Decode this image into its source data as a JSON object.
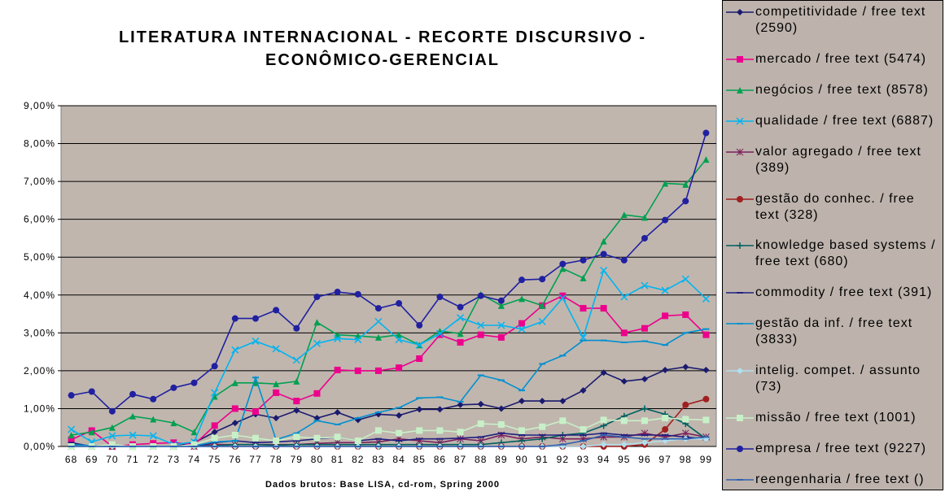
{
  "chart_data": {
    "type": "line",
    "title": [
      "LITERATURA INTERNACIONAL - RECORTE DISCURSIVO -",
      "ECONÔMICO-GERENCIAL"
    ],
    "x_label": "Dados brutos: Base LISA, cd-rom, Spring 2000",
    "categories": [
      "68",
      "69",
      "70",
      "71",
      "72",
      "73",
      "74",
      "75",
      "76",
      "77",
      "78",
      "79",
      "80",
      "81",
      "82",
      "83",
      "84",
      "85",
      "86",
      "87",
      "88",
      "89",
      "90",
      "91",
      "92",
      "93",
      "94",
      "95",
      "96",
      "97",
      "98",
      "99"
    ],
    "ylim": [
      0,
      9
    ],
    "yticks": [
      {
        "value": 0,
        "label": "0,00%"
      },
      {
        "value": 1,
        "label": "1,00%"
      },
      {
        "value": 2,
        "label": "2,00%"
      },
      {
        "value": 3,
        "label": "3,00%"
      },
      {
        "value": 4,
        "label": "4,00%"
      },
      {
        "value": 5,
        "label": "5,00%"
      },
      {
        "value": 6,
        "label": "6,00%"
      },
      {
        "value": 7,
        "label": "7,00%"
      },
      {
        "value": 8,
        "label": "8,00%"
      },
      {
        "value": 9,
        "label": "9,00%"
      }
    ],
    "grid": true,
    "series": [
      {
        "name": "competitividade / free text (2590)",
        "color": "#1a1a6e",
        "marker": "diamond",
        "values": [
          0.05,
          0,
          0,
          0,
          0,
          0,
          0.1,
          0.38,
          0.62,
          0.85,
          0.75,
          0.95,
          0.75,
          0.9,
          0.7,
          0.85,
          0.82,
          0.98,
          0.98,
          1.1,
          1.12,
          1.0,
          1.2,
          1.2,
          1.2,
          1.48,
          1.95,
          1.72,
          1.78,
          2.02,
          2.1,
          2.02
        ]
      },
      {
        "name": "mercado / free text (5474)",
        "color": "#ec008c",
        "marker": "square",
        "values": [
          0.18,
          0.42,
          0,
          0.05,
          0.08,
          0.1,
          0.05,
          0.55,
          1.0,
          0.92,
          1.42,
          1.2,
          1.4,
          2.02,
          2.0,
          2.0,
          2.08,
          2.32,
          2.95,
          2.75,
          2.95,
          2.88,
          3.25,
          3.72,
          3.98,
          3.65,
          3.65,
          3.0,
          3.12,
          3.45,
          3.48,
          2.95
        ]
      },
      {
        "name": "negócios / free text (8578)",
        "color": "#00a050",
        "marker": "triangle",
        "values": [
          0.3,
          0.38,
          0.5,
          0.8,
          0.72,
          0.62,
          0.38,
          1.32,
          1.68,
          1.68,
          1.65,
          1.72,
          3.28,
          2.95,
          2.92,
          2.88,
          2.95,
          2.68,
          3.05,
          2.98,
          4.02,
          3.72,
          3.9,
          3.72,
          4.7,
          4.45,
          5.42,
          6.12,
          6.05,
          6.95,
          6.92,
          7.58
        ]
      },
      {
        "name": "qualidade / free text (6887)",
        "color": "#00b4f0",
        "marker": "x",
        "values": [
          0.45,
          0.12,
          0.28,
          0.3,
          0.28,
          0.05,
          0.12,
          1.42,
          2.55,
          2.78,
          2.58,
          2.28,
          2.72,
          2.85,
          2.82,
          3.3,
          2.82,
          2.68,
          2.98,
          3.4,
          3.2,
          3.2,
          3.1,
          3.3,
          3.92,
          2.88,
          4.65,
          3.95,
          4.25,
          4.12,
          4.42,
          3.9
        ]
      },
      {
        "name": "valor agregado / free text (389)",
        "color": "#7a1f5c",
        "marker": "star",
        "values": [
          0,
          0,
          0,
          0,
          0,
          0,
          0,
          0.05,
          0.05,
          0.05,
          0.05,
          0.05,
          0.08,
          0.1,
          0.1,
          0.12,
          0.2,
          0.15,
          0.1,
          0.2,
          0.15,
          0.3,
          0.2,
          0.25,
          0.2,
          0.2,
          0.25,
          0.25,
          0.35,
          0.25,
          0.35,
          0.25
        ]
      },
      {
        "name": "gestão do conhec. / free text (328)",
        "color": "#a02020",
        "marker": "circle",
        "values": [
          0,
          0,
          0,
          0,
          0,
          0,
          0,
          0,
          0,
          0,
          0,
          0,
          0,
          0,
          0,
          0,
          0,
          0,
          0,
          0,
          0,
          0,
          0,
          0,
          0,
          0,
          0,
          0,
          0.05,
          0.45,
          1.1,
          1.25
        ]
      },
      {
        "name": "knowledge based systems / free text (680)",
        "color": "#006060",
        "marker": "plus",
        "values": [
          0,
          0,
          0,
          0,
          0,
          0,
          0,
          0.02,
          0.05,
          0.05,
          0.03,
          0.05,
          0.05,
          0.05,
          0.05,
          0.05,
          0.05,
          0.05,
          0.05,
          0.05,
          0.05,
          0.1,
          0.15,
          0.2,
          0.3,
          0.35,
          0.55,
          0.8,
          1.0,
          0.85,
          0.6,
          0.2
        ]
      },
      {
        "name": "commodity / free text (391)",
        "color": "#202080",
        "marker": "dash",
        "values": [
          0.1,
          0,
          0,
          0,
          0,
          0,
          0,
          0.1,
          0.15,
          0.1,
          0.12,
          0.15,
          0.2,
          0.25,
          0.15,
          0.2,
          0.15,
          0.2,
          0.2,
          0.22,
          0.25,
          0.35,
          0.3,
          0.3,
          0.3,
          0.3,
          0.35,
          0.3,
          0.3,
          0.3,
          0.25,
          0.2
        ]
      },
      {
        "name": "gestão da inf. / free text (3833)",
        "color": "#0090d0",
        "marker": "dash",
        "values": [
          0.05,
          0.02,
          0,
          0,
          0,
          0,
          0.02,
          0.12,
          0.15,
          1.82,
          0.18,
          0.35,
          0.68,
          0.58,
          0.75,
          0.9,
          1.02,
          1.28,
          1.3,
          1.18,
          1.88,
          1.75,
          1.48,
          2.18,
          2.4,
          2.8,
          2.8,
          2.75,
          2.78,
          2.68,
          3.0,
          3.1
        ]
      },
      {
        "name": "intelig. compet. / assunto (73)",
        "color": "#b0e0f0",
        "marker": "diamond",
        "values": [
          0,
          0,
          0,
          0,
          0,
          0,
          0,
          0,
          0,
          0,
          0,
          0,
          0,
          0,
          0,
          0,
          0,
          0,
          0,
          0,
          0,
          0,
          0,
          0,
          0,
          0,
          0.05,
          0.05,
          0.1,
          0.15,
          0.2,
          0.2
        ]
      },
      {
        "name": "missão / free text (1001)",
        "color": "#c8f0c8",
        "marker": "square",
        "values": [
          0,
          0,
          0.05,
          0,
          0,
          0,
          0.05,
          0.22,
          0.3,
          0.22,
          0.15,
          0.25,
          0.22,
          0.25,
          0.15,
          0.42,
          0.35,
          0.42,
          0.42,
          0.38,
          0.6,
          0.58,
          0.42,
          0.52,
          0.68,
          0.45,
          0.7,
          0.68,
          0.68,
          0.75,
          0.72,
          0.7
        ]
      },
      {
        "name": "empresa / free text (9227)",
        "color": "#2020a0",
        "marker": "circle",
        "values": [
          1.35,
          1.45,
          0.93,
          1.38,
          1.25,
          1.55,
          1.68,
          2.12,
          3.38,
          3.38,
          3.6,
          3.12,
          3.95,
          4.08,
          4.02,
          3.65,
          3.78,
          3.2,
          3.95,
          3.68,
          3.98,
          3.85,
          4.4,
          4.42,
          4.82,
          4.92,
          5.08,
          4.92,
          5.5,
          5.98,
          6.48,
          8.28
        ]
      },
      {
        "name": "reengenharia / free text ()",
        "color": "#3060b0",
        "marker": "dash",
        "values": [
          0,
          0,
          0,
          0,
          0,
          0,
          0,
          0,
          0,
          0,
          0,
          0,
          0,
          0,
          0,
          0,
          0,
          0,
          0,
          0,
          0,
          0,
          0,
          0,
          0.05,
          0.15,
          0.3,
          0.25,
          0.2,
          0.2,
          0.2,
          0.25
        ]
      }
    ]
  }
}
